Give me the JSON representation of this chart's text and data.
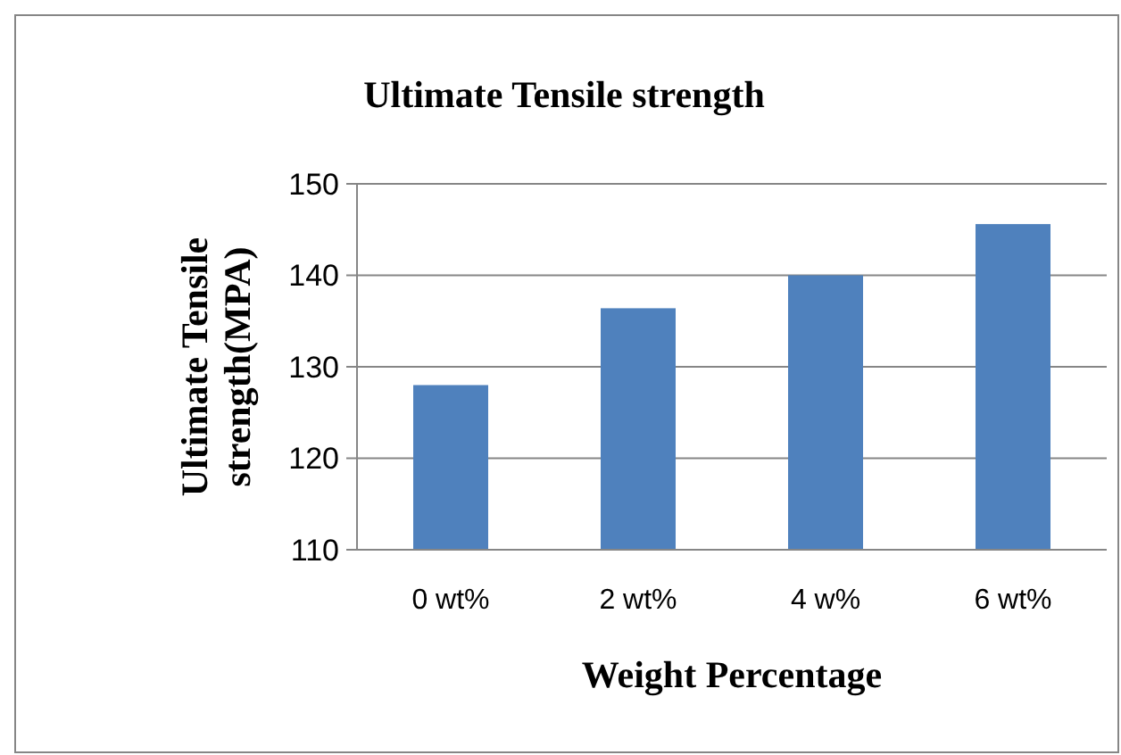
{
  "chart_data": {
    "type": "bar",
    "title": "Ultimate Tensile strength",
    "xlabel": "Weight Percentage",
    "ylabel": "Ultimate Tensile strength(MPA)",
    "categories": [
      "0 wt%",
      "2 wt%",
      "4 w%",
      "6 wt%"
    ],
    "values": [
      128,
      136.4,
      140,
      145.6
    ],
    "color": "#4f81bd",
    "ylim": [
      110,
      150
    ],
    "yticks": [
      110,
      120,
      130,
      140,
      150
    ],
    "grid": "y"
  }
}
